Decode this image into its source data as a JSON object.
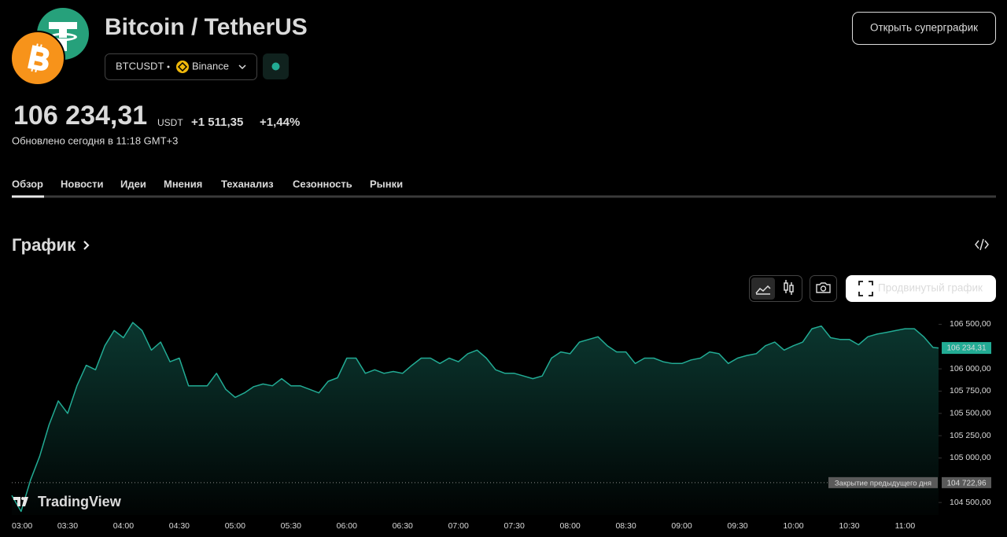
{
  "header": {
    "title": "Bitcoin / TetherUS",
    "symbol": "BTCUSDT",
    "exchange": "Binance",
    "button": "Открыть суперграфик"
  },
  "quote": {
    "price": "106 234,31",
    "currency": "USDT",
    "change": "+1 511,35",
    "change_percent": "+1,44%",
    "updated": "Обновлено сегодня в 11:18 GMT+3"
  },
  "tabs": [
    "Обзор",
    "Новости",
    "Идеи",
    "Мнения",
    "Теханализ",
    "Сезонность",
    "Рынки"
  ],
  "section_title": "График",
  "toolbar": {
    "advanced_button": "Продвинутый график"
  },
  "watermark": "TradingView",
  "chart_data": {
    "type": "area",
    "color": "#22ab94",
    "x": [
      "03:00",
      "03:05",
      "03:10",
      "03:15",
      "03:20",
      "03:25",
      "03:30",
      "03:35",
      "03:40",
      "03:45",
      "03:50",
      "03:55",
      "04:00",
      "04:05",
      "04:10",
      "04:15",
      "04:20",
      "04:25",
      "04:30",
      "04:35",
      "04:40",
      "04:45",
      "04:50",
      "04:55",
      "05:00",
      "05:05",
      "05:10",
      "05:15",
      "05:20",
      "05:25",
      "05:30",
      "05:35",
      "05:40",
      "05:45",
      "05:50",
      "05:55",
      "06:00",
      "06:05",
      "06:10",
      "06:15",
      "06:20",
      "06:25",
      "06:30",
      "06:35",
      "06:40",
      "06:45",
      "06:50",
      "06:55",
      "07:00",
      "07:05",
      "07:10",
      "07:15",
      "07:20",
      "07:25",
      "07:30",
      "07:35",
      "07:40",
      "07:45",
      "07:50",
      "07:55",
      "08:00",
      "08:05",
      "08:10",
      "08:15",
      "08:20",
      "08:25",
      "08:30",
      "08:35",
      "08:40",
      "08:45",
      "08:50",
      "08:55",
      "09:00",
      "09:05",
      "09:10",
      "09:15",
      "09:20",
      "09:25",
      "09:30",
      "09:35",
      "09:40",
      "09:45",
      "09:50",
      "09:55",
      "10:00",
      "10:05",
      "10:10",
      "10:15",
      "10:20",
      "10:25",
      "10:30",
      "10:35",
      "10:40",
      "10:45",
      "10:50",
      "10:55",
      "11:00",
      "11:05",
      "11:10",
      "11:15",
      "11:18"
    ],
    "values": [
      104580,
      104400,
      104750,
      105020,
      105370,
      105640,
      105500,
      105810,
      106040,
      105990,
      106260,
      106430,
      106350,
      106520,
      106430,
      106210,
      106300,
      106080,
      106120,
      105810,
      105810,
      105810,
      105950,
      105770,
      105680,
      105730,
      105800,
      105830,
      105810,
      105890,
      105810,
      105810,
      105770,
      105730,
      105860,
      105900,
      106120,
      106120,
      105950,
      105990,
      105950,
      105970,
      105950,
      106040,
      106120,
      106120,
      106060,
      106120,
      106080,
      106170,
      106210,
      106120,
      105990,
      105950,
      105950,
      105920,
      105890,
      105920,
      106120,
      106190,
      106170,
      106300,
      106330,
      106360,
      106260,
      106190,
      106190,
      106060,
      106120,
      106120,
      106080,
      106060,
      106060,
      106100,
      106120,
      106190,
      106170,
      106060,
      106120,
      106150,
      106170,
      106260,
      106300,
      106210,
      106260,
      106300,
      106450,
      106480,
      106350,
      106330,
      106330,
      106270,
      106360,
      106390,
      106410,
      106430,
      106450,
      106450,
      106360,
      106240,
      106234.31
    ],
    "xlim": [
      "03:00",
      "11:18"
    ],
    "xticks": [
      "03:00",
      "03:30",
      "04:00",
      "04:30",
      "05:00",
      "05:30",
      "06:00",
      "06:30",
      "07:00",
      "07:30",
      "08:00",
      "08:30",
      "09:00",
      "09:30",
      "10:00",
      "10:30",
      "11:00"
    ],
    "ylim": [
      104360,
      106610
    ],
    "yticks": [
      {
        "value": 104500,
        "label": "104 500,00"
      },
      {
        "value": 105000,
        "label": "105 000,00"
      },
      {
        "value": 105250,
        "label": "105 250,00"
      },
      {
        "value": 105500,
        "label": "105 500,00"
      },
      {
        "value": 105750,
        "label": "105 750,00"
      },
      {
        "value": 106000,
        "label": "106 000,00"
      },
      {
        "value": 106500,
        "label": "106 500,00"
      }
    ],
    "last_price": {
      "value": 106234.31,
      "label": "106 234,31"
    },
    "previous_close": {
      "name": "Закрытие предыдущего дня",
      "value": 104722.96,
      "label": "104 722,96"
    }
  }
}
